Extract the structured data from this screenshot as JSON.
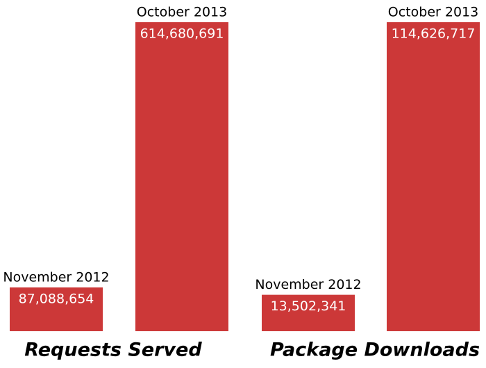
{
  "chart_data": [
    {
      "type": "bar",
      "title": "Requests Served",
      "categories": [
        "November 2012",
        "October 2013"
      ],
      "values": [
        87088654,
        614680691
      ],
      "value_labels": [
        "87,088,654",
        "614,680,691"
      ],
      "color": "#cc3838"
    },
    {
      "type": "bar",
      "title": "Package Downloads",
      "categories": [
        "November 2012",
        "October 2013"
      ],
      "values": [
        13502341,
        114626717
      ],
      "value_labels": [
        "13,502,341",
        "114,626,717"
      ],
      "color": "#cc3838"
    }
  ]
}
